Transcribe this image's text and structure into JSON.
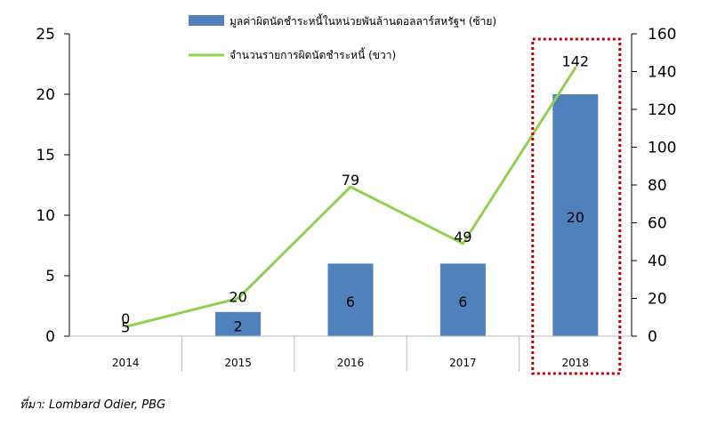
{
  "chart_data": {
    "type": "bar+line",
    "categories": [
      "2014",
      "2015",
      "2016",
      "2017",
      "2018"
    ],
    "series": [
      {
        "name": "มูลค่าผิดนัดชำระหนี้ในหน่วยพันล้านดอลลาร์สหรัฐฯ (ซ้าย)",
        "type": "bar",
        "axis": "left",
        "values": [
          0,
          2,
          6,
          6,
          20
        ],
        "labels": [
          "0",
          "2",
          "6",
          "6",
          "20"
        ],
        "color": "#4F81BD"
      },
      {
        "name": "จำนวนรายการผิดนัดชำระหนี้ (ขวา)",
        "type": "line",
        "axis": "right",
        "values": [
          5,
          20,
          79,
          49,
          142
        ],
        "labels": [
          "5",
          "20",
          "79",
          "49",
          "142"
        ],
        "color": "#92D050"
      }
    ],
    "y_left": {
      "range": [
        0,
        25
      ],
      "ticks": [
        "0",
        "5",
        "10",
        "15",
        "20",
        "25"
      ]
    },
    "y_right": {
      "range": [
        0,
        160
      ],
      "ticks": [
        "0",
        "20",
        "40",
        "60",
        "80",
        "100",
        "120",
        "140",
        "160"
      ]
    },
    "highlight_category": "2018",
    "highlight_color": "#C00000",
    "grid": false,
    "legend": "top-right"
  },
  "source_text": "ที่มา: Lombard Odier, PBG"
}
